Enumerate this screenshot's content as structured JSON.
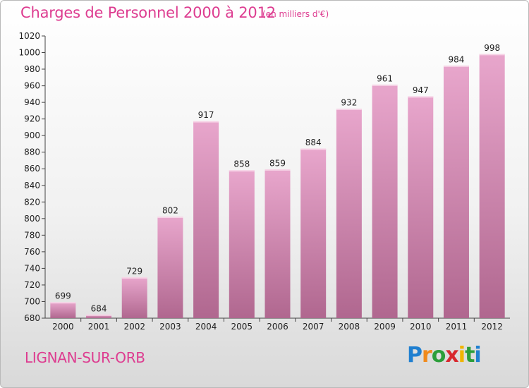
{
  "header": {
    "title": "Charges de Personnel 2000 à 2012",
    "unit": "(en milliers d'€)"
  },
  "footer": {
    "commune": "LIGNAN-SUR-ORB",
    "logo_letters": [
      "P",
      "r",
      "o",
      "x",
      "i",
      "t",
      "i"
    ],
    "logo_colors": [
      "#1f7fd0",
      "#f08a1c",
      "#2c9e3a",
      "#d8282e",
      "#f0b400",
      "#2c9e3a",
      "#1f7fd0"
    ]
  },
  "colors": {
    "accent": "#dd3c90",
    "bar_top": "#e8a6cc",
    "bar_bottom": "#b0678f"
  },
  "chart_data": {
    "type": "bar",
    "categories": [
      "2000",
      "2001",
      "2002",
      "2003",
      "2004",
      "2005",
      "2006",
      "2007",
      "2008",
      "2009",
      "2010",
      "2011",
      "2012"
    ],
    "values": [
      699,
      684,
      729,
      802,
      917,
      858,
      859,
      884,
      932,
      961,
      947,
      984,
      998
    ],
    "title": "Charges de Personnel 2000 à 2012",
    "xlabel": "",
    "ylabel": "",
    "ylim": [
      680,
      1020
    ],
    "yticks": [
      680,
      700,
      720,
      740,
      760,
      780,
      800,
      820,
      840,
      860,
      880,
      900,
      920,
      940,
      960,
      980,
      1000,
      1020
    ],
    "grid": false,
    "legend": "none"
  }
}
